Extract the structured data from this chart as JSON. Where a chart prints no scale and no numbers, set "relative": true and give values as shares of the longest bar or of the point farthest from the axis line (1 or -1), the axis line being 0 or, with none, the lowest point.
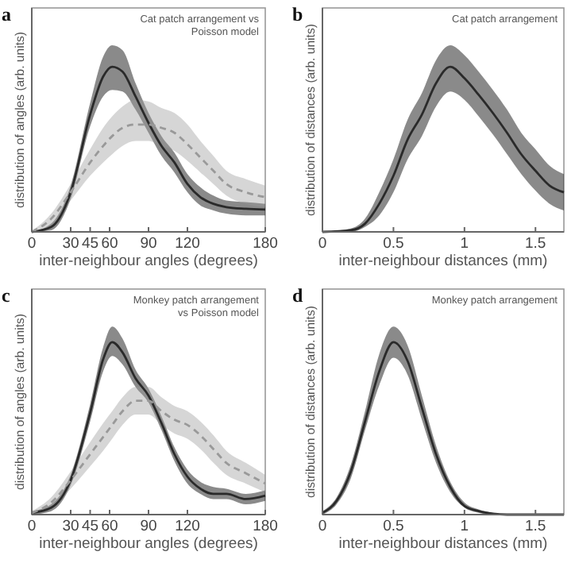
{
  "chart_data": [
    {
      "type": "line",
      "relative": true,
      "title": "Cat patch arrangement vs Poisson model",
      "annotations": [
        "a"
      ],
      "xlabel": "inter-neighbour angles (degrees)",
      "ylabel": "distribution of angles (arb. units)",
      "xlim": [
        0,
        180
      ],
      "xticks": [
        0,
        30,
        45,
        60,
        90,
        120,
        180
      ],
      "x": [
        0,
        15,
        30,
        45,
        55,
        62,
        70,
        80,
        90,
        100,
        110,
        120,
        130,
        140,
        150,
        165,
        180
      ],
      "series": [
        {
          "color": "#2a2a2a",
          "line_style": "solid",
          "values": [
            0,
            0.03,
            0.24,
            0.71,
            0.94,
            1.0,
            0.97,
            0.82,
            0.66,
            0.52,
            0.42,
            0.29,
            0.21,
            0.17,
            0.15,
            0.14,
            0.135
          ],
          "upper": [
            0,
            0.05,
            0.28,
            0.78,
            1.06,
            1.13,
            1.1,
            0.9,
            0.72,
            0.58,
            0.48,
            0.35,
            0.27,
            0.22,
            0.19,
            0.18,
            0.17
          ],
          "lower": [
            0,
            0.01,
            0.2,
            0.64,
            0.82,
            0.86,
            0.85,
            0.74,
            0.6,
            0.46,
            0.36,
            0.24,
            0.16,
            0.13,
            0.11,
            0.1,
            0.1
          ]
        },
        {
          "color": "#999999",
          "line_style": "dashed",
          "values": [
            0,
            0.08,
            0.24,
            0.42,
            0.52,
            0.58,
            0.63,
            0.65,
            0.65,
            0.63,
            0.6,
            0.53,
            0.45,
            0.37,
            0.29,
            0.24,
            0.21
          ],
          "upper": [
            0.005,
            0.11,
            0.29,
            0.5,
            0.63,
            0.7,
            0.76,
            0.8,
            0.79,
            0.75,
            0.72,
            0.65,
            0.55,
            0.46,
            0.37,
            0.32,
            0.28
          ],
          "lower": [
            0,
            0.04,
            0.19,
            0.34,
            0.42,
            0.47,
            0.52,
            0.55,
            0.55,
            0.52,
            0.49,
            0.43,
            0.36,
            0.29,
            0.22,
            0.17,
            0.15
          ]
        }
      ]
    },
    {
      "type": "line",
      "relative": true,
      "title": "Cat patch arrangement",
      "annotations": [
        "b"
      ],
      "xlabel": "inter-neighbour distances (mm)",
      "ylabel": "distribution of distances (arb. units)",
      "xlim": [
        0,
        1.7
      ],
      "xticks": [
        0,
        0.5,
        1,
        1.5
      ],
      "x": [
        0,
        0.2,
        0.3,
        0.4,
        0.5,
        0.6,
        0.7,
        0.8,
        0.9,
        1,
        1.1,
        1.2,
        1.3,
        1.4,
        1.5,
        1.6,
        1.7
      ],
      "series": [
        {
          "color": "#2a2a2a",
          "line_style": "solid",
          "values": [
            0,
            0.01,
            0.05,
            0.17,
            0.34,
            0.56,
            0.71,
            0.9,
            1.0,
            0.93,
            0.83,
            0.72,
            0.6,
            0.47,
            0.37,
            0.28,
            0.24
          ],
          "upper": [
            0,
            0.02,
            0.08,
            0.24,
            0.44,
            0.68,
            0.84,
            1.04,
            1.13,
            1.07,
            0.97,
            0.86,
            0.74,
            0.6,
            0.5,
            0.4,
            0.35
          ],
          "lower": [
            0,
            0,
            0.03,
            0.1,
            0.24,
            0.44,
            0.58,
            0.76,
            0.85,
            0.8,
            0.7,
            0.59,
            0.47,
            0.35,
            0.25,
            0.17,
            0.13
          ]
        }
      ]
    },
    {
      "type": "line",
      "relative": true,
      "title": "Monkey patch arrangement vs Poisson model",
      "annotations": [
        "c"
      ],
      "xlabel": "inter-neighbour angles (degrees)",
      "ylabel": "distribution of angles (arb. units)",
      "xlim": [
        0,
        180
      ],
      "xticks": [
        0,
        30,
        45,
        60,
        90,
        120,
        180
      ],
      "x": [
        0,
        15,
        30,
        45,
        55,
        62,
        70,
        80,
        90,
        100,
        110,
        120,
        130,
        140,
        150,
        165,
        180
      ],
      "series": [
        {
          "color": "#2a2a2a",
          "line_style": "solid",
          "values": [
            0.01,
            0.04,
            0.2,
            0.59,
            0.9,
            1.0,
            0.94,
            0.79,
            0.69,
            0.53,
            0.35,
            0.22,
            0.15,
            0.12,
            0.12,
            0.09,
            0.11
          ],
          "upper": [
            0.02,
            0.06,
            0.23,
            0.64,
            0.97,
            1.09,
            1.02,
            0.84,
            0.73,
            0.57,
            0.39,
            0.26,
            0.19,
            0.16,
            0.15,
            0.12,
            0.14
          ],
          "lower": [
            0,
            0.02,
            0.17,
            0.54,
            0.83,
            0.92,
            0.87,
            0.74,
            0.65,
            0.49,
            0.31,
            0.18,
            0.12,
            0.09,
            0.09,
            0.06,
            0.08
          ]
        },
        {
          "color": "#999999",
          "line_style": "dashed",
          "values": [
            0.01,
            0.07,
            0.2,
            0.35,
            0.45,
            0.52,
            0.6,
            0.66,
            0.66,
            0.6,
            0.55,
            0.52,
            0.46,
            0.38,
            0.3,
            0.24,
            0.18
          ],
          "upper": [
            0.02,
            0.1,
            0.25,
            0.42,
            0.53,
            0.6,
            0.68,
            0.74,
            0.74,
            0.68,
            0.63,
            0.6,
            0.54,
            0.46,
            0.37,
            0.3,
            0.23
          ],
          "lower": [
            0,
            0.04,
            0.15,
            0.28,
            0.37,
            0.44,
            0.52,
            0.58,
            0.58,
            0.52,
            0.47,
            0.44,
            0.38,
            0.3,
            0.23,
            0.18,
            0.13
          ]
        }
      ]
    },
    {
      "type": "line",
      "relative": true,
      "title": "Monkey patch arrangement",
      "annotations": [
        "d"
      ],
      "xlabel": "inter-neighbour distances (mm)",
      "ylabel": "distribution of distances (arb. units)",
      "xlim": [
        0,
        1.7
      ],
      "xticks": [
        0,
        0.5,
        1,
        1.5
      ],
      "x": [
        0,
        0.1,
        0.2,
        0.3,
        0.4,
        0.5,
        0.6,
        0.7,
        0.8,
        0.9,
        1,
        1.1,
        1.2,
        1.3,
        1.5,
        1.7
      ],
      "series": [
        {
          "color": "#2a2a2a",
          "line_style": "solid",
          "values": [
            0.01,
            0.08,
            0.25,
            0.54,
            0.83,
            1.0,
            0.89,
            0.62,
            0.35,
            0.16,
            0.05,
            0.02,
            0.005,
            0,
            0,
            0
          ],
          "upper": [
            0.02,
            0.1,
            0.29,
            0.6,
            0.93,
            1.09,
            0.98,
            0.69,
            0.4,
            0.19,
            0.07,
            0.03,
            0.01,
            0,
            0,
            0
          ],
          "lower": [
            0,
            0.06,
            0.21,
            0.49,
            0.75,
            0.91,
            0.81,
            0.55,
            0.3,
            0.13,
            0.04,
            0.01,
            0,
            0,
            0,
            0
          ]
        }
      ]
    }
  ]
}
